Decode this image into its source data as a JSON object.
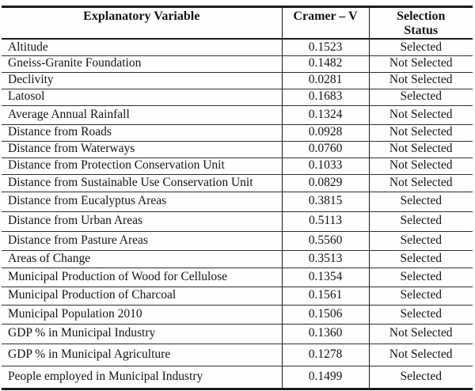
{
  "table": {
    "columns": [
      {
        "label": "Explanatory Variable"
      },
      {
        "label": "Cramer – V"
      },
      {
        "label": "Selection\nStatus"
      }
    ],
    "rows": [
      {
        "variable": "Altitude",
        "cramer_v": "0.1523",
        "status": "Selected"
      },
      {
        "variable": "Gneiss-Granite Foundation",
        "cramer_v": "0.1482",
        "status": "Not Selected"
      },
      {
        "variable": "Declivity",
        "cramer_v": "0.0281",
        "status": "Not Selected"
      },
      {
        "variable": "Latosol",
        "cramer_v": "0.1683",
        "status": "Selected"
      },
      {
        "variable": "Average Annual Rainfall",
        "cramer_v": "0.1324",
        "status": "Not Selected"
      },
      {
        "variable": "Distance from Roads",
        "cramer_v": "0.0928",
        "status": "Not Selected"
      },
      {
        "variable": "Distance from Waterways",
        "cramer_v": "0.0760",
        "status": "Not Selected"
      },
      {
        "variable": "Distance from Protection Conservation Unit",
        "cramer_v": "0.1033",
        "status": "Not Selected"
      },
      {
        "variable": "Distance from Sustainable Use Conservation Unit",
        "cramer_v": "0.0829",
        "status": "Not Selected"
      },
      {
        "variable": "Distance from Eucalyptus Areas",
        "cramer_v": "0.3815",
        "status": "Selected"
      },
      {
        "variable": "Distance from Urban Areas",
        "cramer_v": "0.5113",
        "status": "Selected"
      },
      {
        "variable": "Distance from Pasture Areas",
        "cramer_v": "0.5560",
        "status": "Selected"
      },
      {
        "variable": "Areas of Change",
        "cramer_v": "0.3513",
        "status": "Selected"
      },
      {
        "variable": "Municipal Production of Wood for Cellulose",
        "cramer_v": "0.1354",
        "status": "Selected"
      },
      {
        "variable": "Municipal Production of Charcoal",
        "cramer_v": "0.1561",
        "status": "Selected"
      },
      {
        "variable": "Municipal Population 2010",
        "cramer_v": "0.1506",
        "status": "Selected"
      },
      {
        "variable": "GDP % in Municipal Industry",
        "cramer_v": "0.1360",
        "status": "Not Selected"
      },
      {
        "variable": "GDP % in Municipal Agriculture",
        "cramer_v": "0.1278",
        "status": "Not Selected"
      },
      {
        "variable": "People employed in Municipal Industry",
        "cramer_v": "0.1499",
        "status": "Selected"
      }
    ]
  }
}
